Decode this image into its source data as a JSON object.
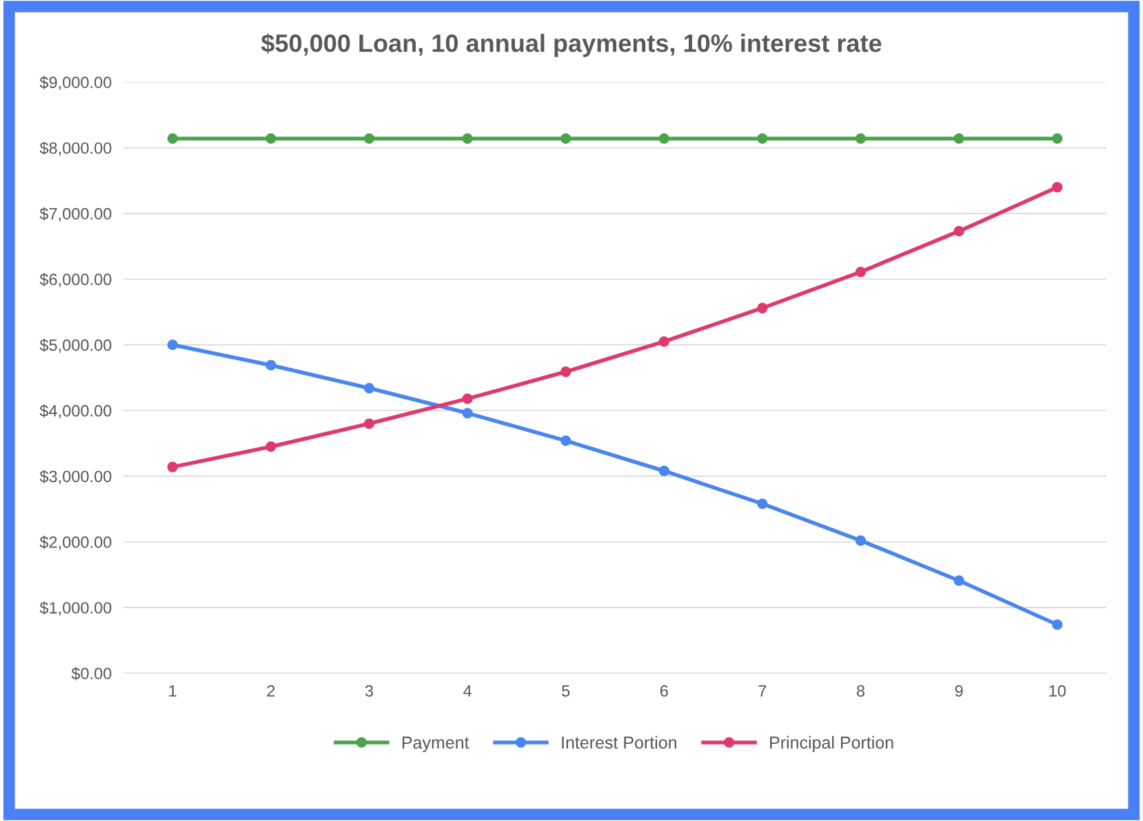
{
  "chart_data": {
    "type": "line",
    "title": "$50,000 Loan, 10 annual payments, 10% interest rate",
    "categories": [
      "1",
      "2",
      "3",
      "4",
      "5",
      "6",
      "7",
      "8",
      "9",
      "10"
    ],
    "series": [
      {
        "name": "Payment",
        "color": "#4ca34c",
        "values": [
          8140,
          8140,
          8140,
          8140,
          8140,
          8140,
          8140,
          8140,
          8140,
          8140
        ]
      },
      {
        "name": "Interest Portion",
        "color": "#4a86f0",
        "values": [
          5000,
          4690,
          4340,
          3960,
          3540,
          3080,
          2580,
          2020,
          1410,
          740
        ]
      },
      {
        "name": "Principal Portion",
        "color": "#de3a6e",
        "values": [
          3140,
          3450,
          3800,
          4180,
          4590,
          5050,
          5560,
          6110,
          6730,
          7400
        ]
      }
    ],
    "ylim": [
      0,
      9000
    ],
    "yticks": [
      {
        "value": 0,
        "label": "$0.00"
      },
      {
        "value": 1000,
        "label": "$1,000.00"
      },
      {
        "value": 2000,
        "label": "$2,000.00"
      },
      {
        "value": 3000,
        "label": "$3,000.00"
      },
      {
        "value": 4000,
        "label": "$4,000.00"
      },
      {
        "value": 5000,
        "label": "$5,000.00"
      },
      {
        "value": 6000,
        "label": "$6,000.00"
      },
      {
        "value": 7000,
        "label": "$7,000.00"
      },
      {
        "value": 8000,
        "label": "$8,000.00"
      },
      {
        "value": 9000,
        "label": "$9,000.00"
      }
    ],
    "grid": "y",
    "legend": "bottom",
    "marker": "circle",
    "line_style": "solid"
  }
}
